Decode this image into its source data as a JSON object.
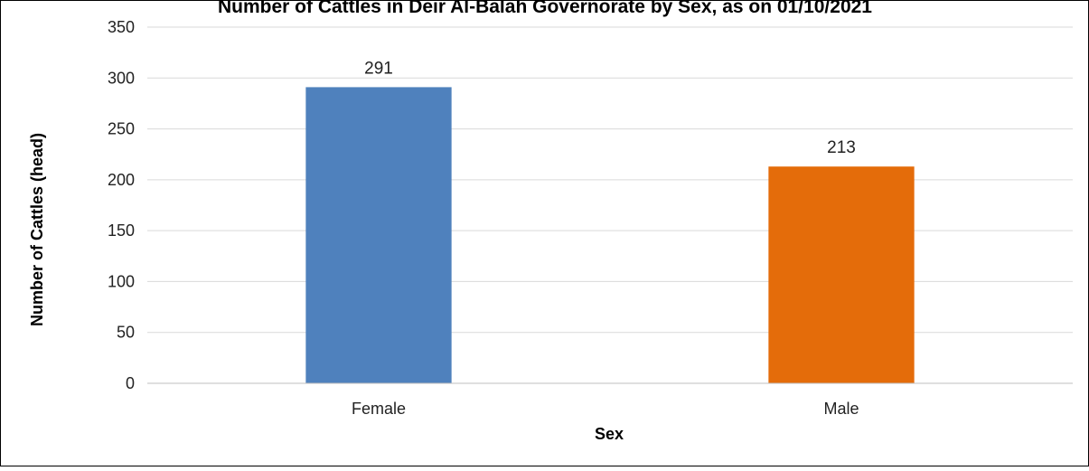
{
  "chart_data": {
    "type": "bar",
    "title": "Number of Cattles in Deir Al-Balah Governorate by Sex, as on 01/10/2021",
    "xlabel": "Sex",
    "ylabel": "Number of Cattles (head)",
    "categories": [
      "Female",
      "Male"
    ],
    "values": [
      291,
      213
    ],
    "colors": [
      "#4f81bd",
      "#e46c0a"
    ],
    "ylim": [
      0,
      350
    ],
    "yticks": [
      0,
      50,
      100,
      150,
      200,
      250,
      300,
      350
    ],
    "grid": true,
    "legend": "none"
  }
}
